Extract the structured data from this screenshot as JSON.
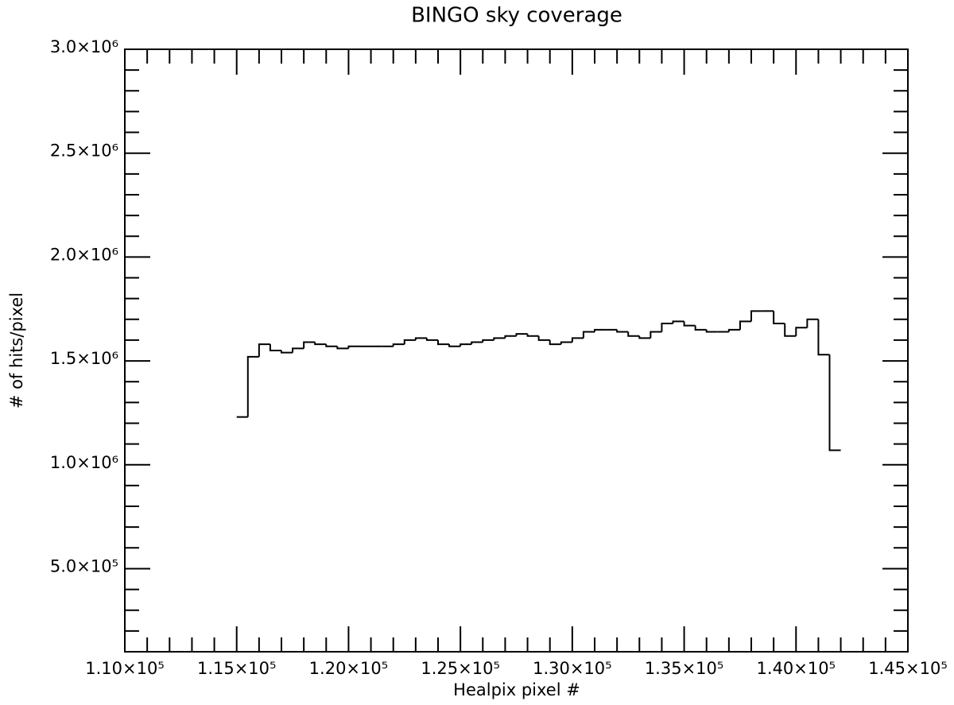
{
  "chart_data": {
    "type": "histogram",
    "title": "BINGO sky coverage",
    "x_label": "Healpix pixel #",
    "y_label": "# of hits/pixel",
    "bins": [
      115000,
      115500,
      116000,
      116500,
      117000,
      117500,
      118000,
      118500,
      119000,
      119500,
      120000,
      120500,
      121000,
      121500,
      122000,
      122500,
      123000,
      123500,
      124000,
      124500,
      125000,
      125500,
      126000,
      126500,
      127000,
      127500,
      128000,
      128500,
      129000,
      129500,
      130000,
      130500,
      131000,
      131500,
      132000,
      132500,
      133000,
      133500,
      134000,
      134500,
      135000,
      135500,
      136000,
      136500,
      137000,
      137500,
      138000,
      138500,
      139000,
      139500,
      140000,
      140500,
      141000,
      141500,
      142000
    ],
    "values": [
      1230000,
      1520000,
      1580000,
      1550000,
      1540000,
      1560000,
      1590000,
      1580000,
      1570000,
      1560000,
      1570000,
      1570000,
      1570000,
      1570000,
      1580000,
      1600000,
      1610000,
      1600000,
      1580000,
      1570000,
      1580000,
      1590000,
      1600000,
      1610000,
      1620000,
      1630000,
      1620000,
      1600000,
      1580000,
      1590000,
      1610000,
      1640000,
      1650000,
      1650000,
      1640000,
      1620000,
      1610000,
      1640000,
      1680000,
      1690000,
      1670000,
      1650000,
      1640000,
      1640000,
      1650000,
      1690000,
      1740000,
      1740000,
      1680000,
      1620000,
      1660000,
      1700000,
      1530000,
      1070000
    ],
    "color": "#000000",
    "xlim": [
      110000,
      145000
    ],
    "xticks": [
      {
        "value": 110000,
        "label": "1.10×10⁵"
      },
      {
        "value": 115000,
        "label": "1.15×10⁵"
      },
      {
        "value": 120000,
        "label": "1.20×10⁵"
      },
      {
        "value": 125000,
        "label": "1.25×10⁵"
      },
      {
        "value": 130000,
        "label": "1.30×10⁵"
      },
      {
        "value": 135000,
        "label": "1.35×10⁵"
      },
      {
        "value": 140000,
        "label": "1.40×10⁵"
      },
      {
        "value": 145000,
        "label": "1.45×10⁵"
      }
    ],
    "ylim": [
      100000,
      3000000
    ],
    "yticks": [
      {
        "value": 500000,
        "label": "5.0×10⁵"
      },
      {
        "value": 1000000,
        "label": "1.0×10⁶"
      },
      {
        "value": 1500000,
        "label": "1.5×10⁶"
      },
      {
        "value": 2000000,
        "label": "2.0×10⁶"
      },
      {
        "value": 2500000,
        "label": "2.5×10⁶"
      },
      {
        "value": 3000000,
        "label": "3.0×10⁶"
      }
    ],
    "minor_subdivisions": 5,
    "mirror_ticks": true,
    "grid": false
  }
}
